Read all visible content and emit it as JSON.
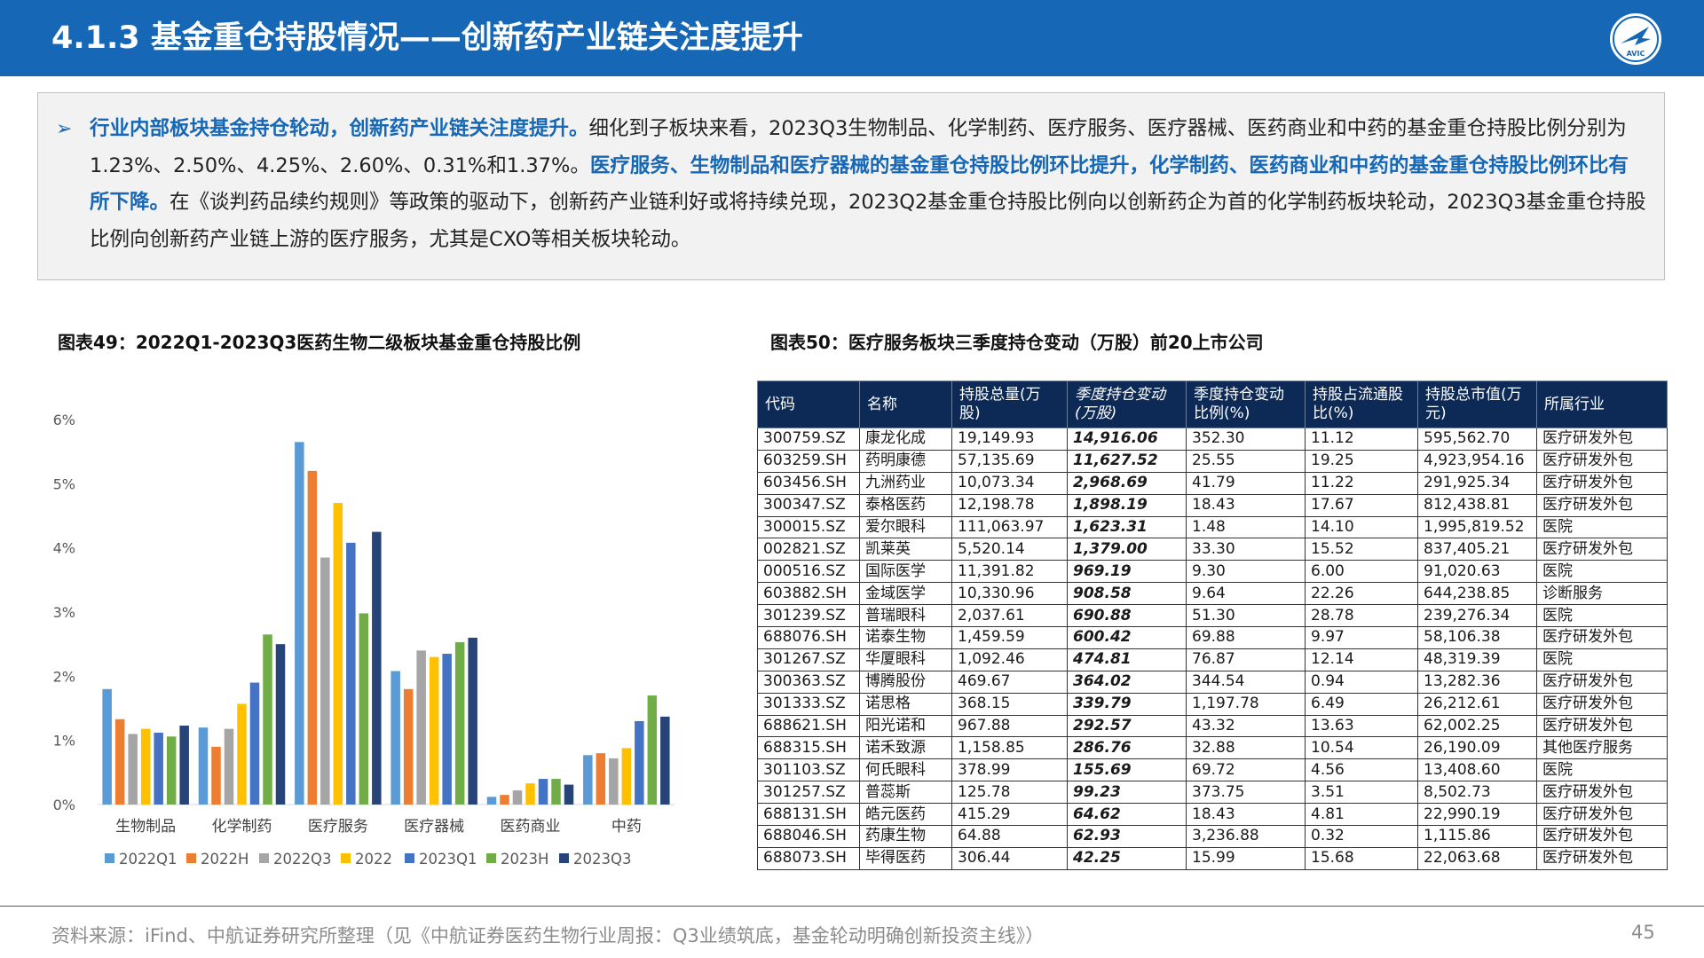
{
  "header": {
    "title": "4.1.3 基金重仓持股情况——创新药产业链关注度提升",
    "logo_text": "AVIC"
  },
  "summary": {
    "bullet": "➢",
    "segments": [
      {
        "text": "行业内部板块基金持仓轮动，创新药产业链关注度提升。",
        "highlight": true
      },
      {
        "text": "细化到子板块来看，2023Q3生物制品、化学制药、医疗服务、医疗器械、医药商业和中药的基金重仓持股比例分别为1.23%、2.50%、4.25%、2.60%、0.31%和1.37%。",
        "highlight": false
      },
      {
        "text": "医疗服务、生物制品和医疗器械的基金重仓持股比例环比提升，化学制药、医药商业和中药的基金重仓持股比例环比有所下降。",
        "highlight": true
      },
      {
        "text": "在《谈判药品续约规则》等政策的驱动下，创新药产业链利好或将持续兑现，2023Q2基金重仓持股比例向以创新药企为首的化学制药板块轮动，2023Q3基金重仓持股比例向创新药产业链上游的医疗服务，尤其是CXO等相关板块轮动。",
        "highlight": false
      }
    ]
  },
  "captions": {
    "left": "图表49：2022Q1-2023Q3医药生物二级板块基金重仓持股比例",
    "right": "图表50：医疗服务板块三季度持仓变动（万股）前20上市公司"
  },
  "chart_data": {
    "type": "bar",
    "title": "",
    "xlabel": "",
    "ylabel": "",
    "ylim": [
      0,
      6
    ],
    "yticks": [
      "0%",
      "1%",
      "2%",
      "3%",
      "4%",
      "5%",
      "6%"
    ],
    "grid": false,
    "legend_position": "bottom",
    "categories": [
      "生物制品",
      "化学制药",
      "医疗服务",
      "医疗器械",
      "医药商业",
      "中药"
    ],
    "series": [
      {
        "name": "2022Q1",
        "color": "#5b9bd5",
        "values": [
          1.8,
          1.2,
          5.65,
          2.08,
          0.12,
          0.77
        ]
      },
      {
        "name": "2022H",
        "color": "#ed7d31",
        "values": [
          1.33,
          0.9,
          5.2,
          1.8,
          0.15,
          0.8
        ]
      },
      {
        "name": "2022Q3",
        "color": "#a5a5a5",
        "values": [
          1.1,
          1.18,
          3.85,
          2.4,
          0.22,
          0.72
        ]
      },
      {
        "name": "2022",
        "color": "#ffc000",
        "values": [
          1.18,
          1.57,
          4.7,
          2.3,
          0.33,
          0.88
        ]
      },
      {
        "name": "2023Q1",
        "color": "#4472c4",
        "values": [
          1.12,
          1.9,
          4.08,
          2.35,
          0.4,
          1.3
        ]
      },
      {
        "name": "2023H",
        "color": "#70ad47",
        "values": [
          1.06,
          2.65,
          2.98,
          2.53,
          0.4,
          1.7
        ]
      },
      {
        "name": "2023Q3",
        "color": "#264478",
        "values": [
          1.23,
          2.5,
          4.25,
          2.6,
          0.31,
          1.37
        ]
      }
    ]
  },
  "table": {
    "headers": [
      "代码",
      "名称",
      "持股总量(万股)",
      "季度持仓变动(万股)",
      "季度持仓变动比例(%)",
      "持股占流通股比(%)",
      "持股总市值(万元)",
      "所属行业"
    ],
    "rows": [
      [
        "300759.SZ",
        "康龙化成",
        "19,149.93",
        "14,916.06",
        "352.30",
        "11.12",
        "595,562.70",
        "医疗研发外包"
      ],
      [
        "603259.SH",
        "药明康德",
        "57,135.69",
        "11,627.52",
        "25.55",
        "19.25",
        "4,923,954.16",
        "医疗研发外包"
      ],
      [
        "603456.SH",
        "九洲药业",
        "10,073.34",
        "2,968.69",
        "41.79",
        "11.22",
        "291,925.34",
        "医疗研发外包"
      ],
      [
        "300347.SZ",
        "泰格医药",
        "12,198.78",
        "1,898.19",
        "18.43",
        "17.67",
        "812,438.81",
        "医疗研发外包"
      ],
      [
        "300015.SZ",
        "爱尔眼科",
        "111,063.97",
        "1,623.31",
        "1.48",
        "14.10",
        "1,995,819.52",
        "医院"
      ],
      [
        "002821.SZ",
        "凯莱英",
        "5,520.14",
        "1,379.00",
        "33.30",
        "15.52",
        "837,405.21",
        "医疗研发外包"
      ],
      [
        "000516.SZ",
        "国际医学",
        "11,391.82",
        "969.19",
        "9.30",
        "6.00",
        "91,020.63",
        "医院"
      ],
      [
        "603882.SH",
        "金域医学",
        "10,330.96",
        "908.58",
        "9.64",
        "22.26",
        "644,238.85",
        "诊断服务"
      ],
      [
        "301239.SZ",
        "普瑞眼科",
        "2,037.61",
        "690.88",
        "51.30",
        "28.78",
        "239,276.34",
        "医院"
      ],
      [
        "688076.SH",
        "诺泰生物",
        "1,459.59",
        "600.42",
        "69.88",
        "9.97",
        "58,106.38",
        "医疗研发外包"
      ],
      [
        "301267.SZ",
        "华厦眼科",
        "1,092.46",
        "474.81",
        "76.87",
        "12.14",
        "48,319.39",
        "医院"
      ],
      [
        "300363.SZ",
        "博腾股份",
        "469.67",
        "364.02",
        "344.54",
        "0.94",
        "13,282.36",
        "医疗研发外包"
      ],
      [
        "301333.SZ",
        "诺思格",
        "368.15",
        "339.79",
        "1,197.78",
        "6.49",
        "26,212.61",
        "医疗研发外包"
      ],
      [
        "688621.SH",
        "阳光诺和",
        "967.88",
        "292.57",
        "43.32",
        "13.63",
        "62,002.25",
        "医疗研发外包"
      ],
      [
        "688315.SH",
        "诺禾致源",
        "1,158.85",
        "286.76",
        "32.88",
        "10.54",
        "26,190.09",
        "其他医疗服务"
      ],
      [
        "301103.SZ",
        "何氏眼科",
        "378.99",
        "155.69",
        "69.72",
        "4.56",
        "13,408.60",
        "医院"
      ],
      [
        "301257.SZ",
        "普蕊斯",
        "125.78",
        "99.23",
        "373.75",
        "3.51",
        "8,502.73",
        "医疗研发外包"
      ],
      [
        "688131.SH",
        "皓元医药",
        "415.29",
        "64.62",
        "18.43",
        "4.81",
        "22,990.19",
        "医疗研发外包"
      ],
      [
        "688046.SH",
        "药康生物",
        "64.88",
        "62.93",
        "3,236.88",
        "0.32",
        "1,115.86",
        "医疗研发外包"
      ],
      [
        "688073.SH",
        "毕得医药",
        "306.44",
        "42.25",
        "15.99",
        "15.68",
        "22,063.68",
        "医疗研发外包"
      ]
    ]
  },
  "footer": {
    "source": "资料来源：iFind、中航证券研究所整理（见《中航证券医药生物行业周报：Q3业绩筑底，基金轮动明确创新投资主线》）",
    "page": "45"
  }
}
